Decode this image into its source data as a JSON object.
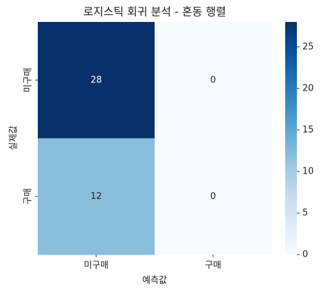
{
  "chart_data": {
    "type": "heatmap",
    "title": "로지스틱 회귀 분석 - 혼동 행렬",
    "x_label": "예측값",
    "y_label": "실제값",
    "x_categories": [
      "미구매",
      "구매"
    ],
    "y_categories": [
      "미구매",
      "구매"
    ],
    "values": [
      [
        28,
        0
      ],
      [
        12,
        0
      ]
    ],
    "colormap": "Blues",
    "clim": [
      0,
      28
    ],
    "cticks": [
      0,
      5,
      10,
      15,
      20,
      25
    ]
  }
}
